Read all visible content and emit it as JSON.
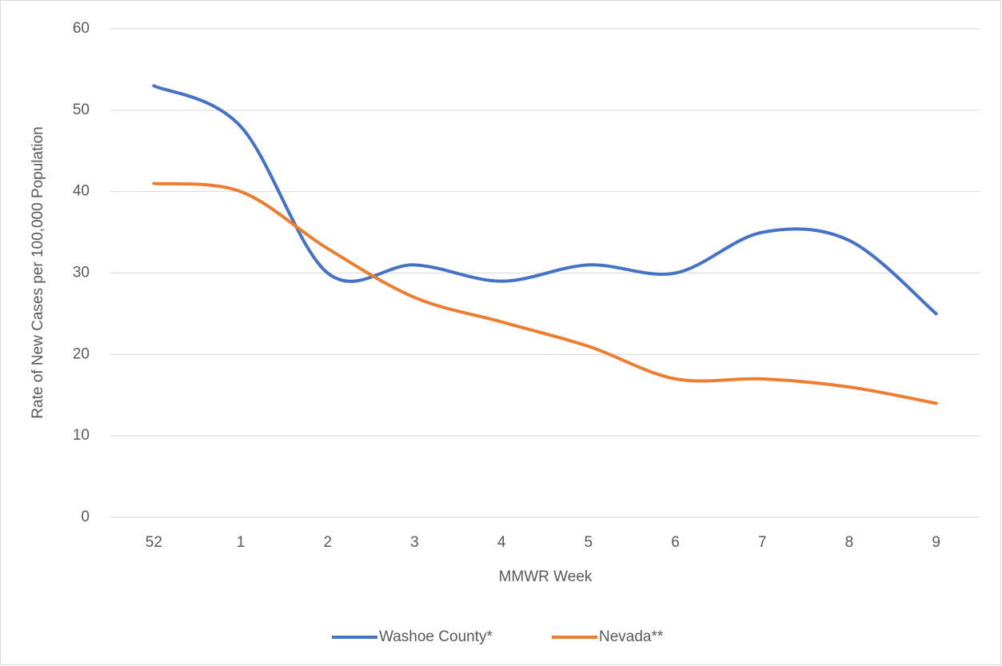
{
  "chart_data": {
    "type": "line",
    "x_label": "MMWR Week",
    "y_label": "Rate of New Cases per 100,000 Population",
    "categories": [
      "52",
      "1",
      "2",
      "3",
      "4",
      "5",
      "6",
      "7",
      "8",
      "9"
    ],
    "series": [
      {
        "name": "Washoe County*",
        "color": "#4472c4",
        "values": [
          53,
          48,
          30,
          31,
          29,
          31,
          30,
          35,
          34,
          25
        ]
      },
      {
        "name": "Nevada**",
        "color": "#ed7d31",
        "values": [
          41,
          40,
          33,
          27,
          24,
          21,
          17,
          17,
          16,
          14
        ]
      }
    ],
    "ylim": [
      0,
      60
    ],
    "yticks": [
      0,
      10,
      20,
      30,
      40,
      50,
      60
    ],
    "grid": true,
    "smooth": true,
    "legend": "bottom"
  }
}
